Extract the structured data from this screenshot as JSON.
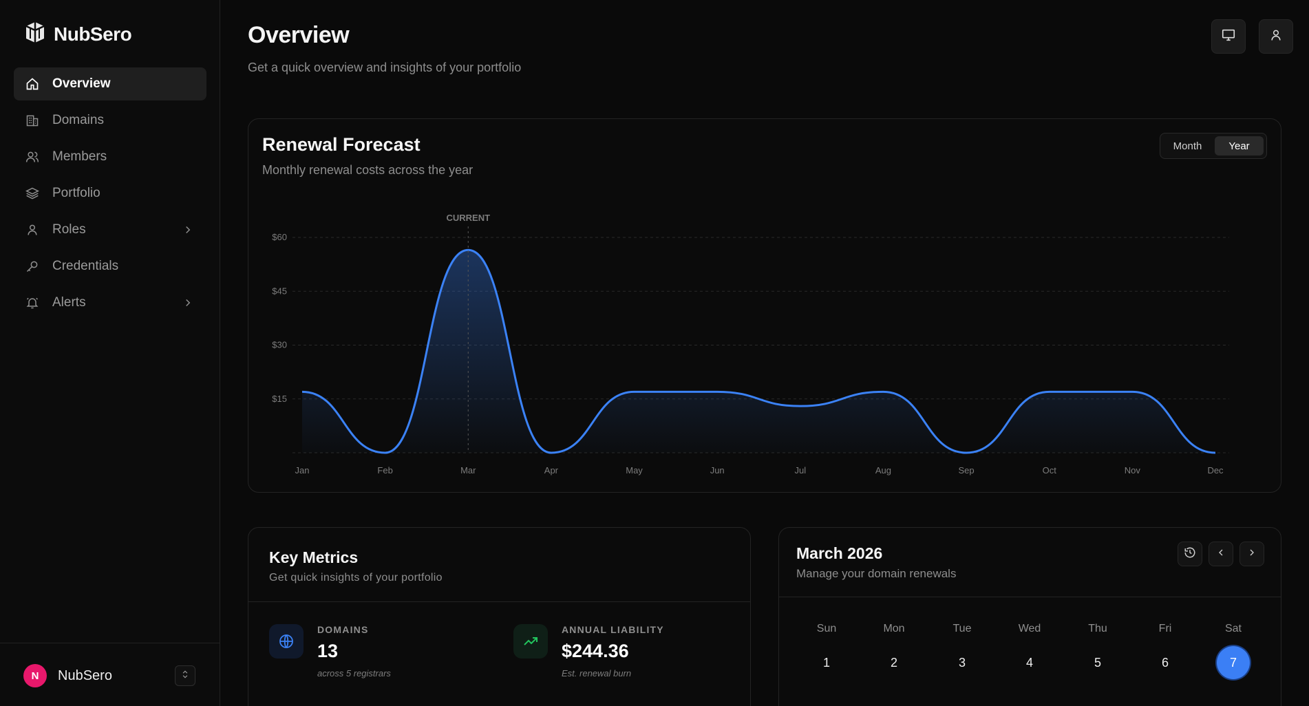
{
  "app": {
    "name": "NubSero"
  },
  "sidebar": {
    "items": [
      {
        "label": "Overview",
        "icon": "home-icon",
        "active": true
      },
      {
        "label": "Domains",
        "icon": "building-icon"
      },
      {
        "label": "Members",
        "icon": "users-icon"
      },
      {
        "label": "Portfolio",
        "icon": "layers-icon"
      },
      {
        "label": "Roles",
        "icon": "user-icon",
        "has_children": true
      },
      {
        "label": "Credentials",
        "icon": "key-icon"
      },
      {
        "label": "Alerts",
        "icon": "bell-icon",
        "has_children": true
      }
    ],
    "footer": {
      "avatar_initial": "N",
      "name": "NubSero"
    }
  },
  "header": {
    "title": "Overview",
    "subtitle": "Get a quick overview and insights of your portfolio"
  },
  "forecast": {
    "title": "Renewal Forecast",
    "subtitle": "Monthly renewal costs across the year",
    "toggle": [
      "Month",
      "Year"
    ],
    "toggle_selected": "Year"
  },
  "chart_data": {
    "type": "area",
    "categories": [
      "Jan",
      "Feb",
      "Mar",
      "Apr",
      "May",
      "Jun",
      "Jul",
      "Aug",
      "Sep",
      "Oct",
      "Nov",
      "Dec"
    ],
    "values": [
      17,
      0,
      56.5,
      0,
      17,
      17,
      13,
      17,
      0,
      17,
      17,
      0
    ],
    "ytick_labels": [
      "$15",
      "$30",
      "$45",
      "$60"
    ],
    "yticks": [
      15,
      30,
      45,
      60
    ],
    "ylim": [
      0,
      60
    ],
    "annotation": {
      "text": "CURRENT",
      "category": "Mar"
    },
    "line_color": "#3b82f6",
    "grid": true
  },
  "metrics": {
    "title": "Key Metrics",
    "subtitle": "Get quick insights of your portfolio",
    "items": [
      {
        "label": "DOMAINS",
        "value": "13",
        "note": "across 5 registrars",
        "icon": "globe-icon",
        "color": "#3b82f6"
      },
      {
        "label": "ANNUAL LIABILITY",
        "value": "$244.36",
        "note": "Est. renewal burn",
        "icon": "trending-up-icon",
        "color": "#22c55e"
      }
    ]
  },
  "calendar": {
    "title": "March 2026",
    "subtitle": "Manage your domain renewals",
    "weekdays": [
      "Sun",
      "Mon",
      "Tue",
      "Wed",
      "Thu",
      "Fri",
      "Sat"
    ],
    "days": [
      "1",
      "2",
      "3",
      "4",
      "5",
      "6",
      "7"
    ],
    "selected_day": "7"
  }
}
